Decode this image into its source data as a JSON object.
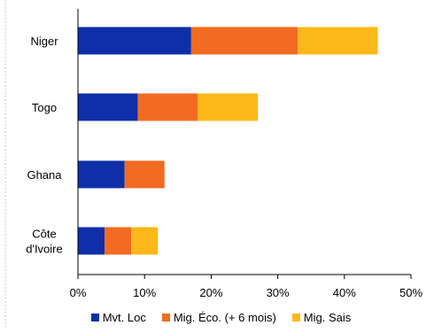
{
  "chart_data": {
    "type": "bar",
    "orientation": "horizontal",
    "stacked": true,
    "categories": [
      "Niger",
      "Togo",
      "Ghana",
      "Côte d'Ivoire"
    ],
    "series": [
      {
        "name": "Mvt. Loc",
        "color": "#0F2FA8",
        "values": [
          17,
          9,
          7,
          4
        ]
      },
      {
        "name": "Mig. Éco. (+ 6 mois)",
        "color": "#F26B22",
        "values": [
          16,
          9,
          6,
          4
        ]
      },
      {
        "name": "Mig. Sais",
        "color": "#FBB818",
        "values": [
          12,
          9,
          0,
          4
        ]
      }
    ],
    "xlim": [
      0,
      50
    ],
    "x_ticks": [
      0,
      10,
      20,
      30,
      40,
      50
    ],
    "x_tick_labels": [
      "0%",
      "10%",
      "20%",
      "30%",
      "40%",
      "50%"
    ],
    "category_labels": [
      [
        "Niger"
      ],
      [
        "Togo"
      ],
      [
        "Ghana"
      ],
      [
        "Côte",
        "d'Ivoire"
      ]
    ],
    "grid": false,
    "legend_position": "bottom",
    "title": "",
    "xlabel": "",
    "ylabel": ""
  }
}
